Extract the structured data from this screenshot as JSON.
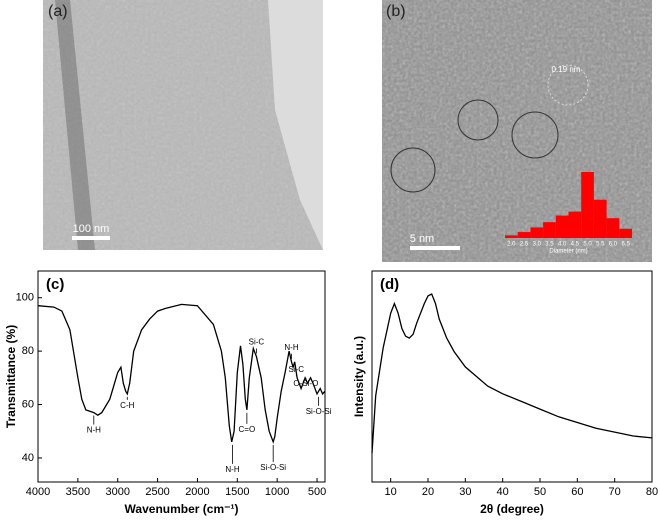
{
  "images": [
    {
      "label": "(a)",
      "scale_bar": "100 nm"
    },
    {
      "label": "(b)",
      "scale_bar": "5 nm",
      "annotation": "0.19 nm"
    }
  ],
  "chart_data": [
    {
      "type": "histogram",
      "xlabel": "Diameter (nm)",
      "color": "#ff0000",
      "bins": [
        1.75,
        2.25,
        2.75,
        3.25,
        3.75,
        4.25,
        4.75,
        5.25,
        5.75,
        6.25,
        6.75
      ],
      "values": [
        4,
        9,
        16,
        24,
        34,
        40,
        100,
        58,
        30,
        14
      ],
      "ylim": [
        0,
        100
      ],
      "xlim": [
        1.75,
        6.75
      ],
      "xticks": [
        {
          "value": 2,
          "label": "2.0"
        },
        2.5,
        {
          "value": 3,
          "label": "3.0"
        },
        3.5,
        {
          "value": 4,
          "label": "4.0"
        },
        4.5,
        {
          "value": 5,
          "label": "5.0"
        },
        5.5,
        {
          "value": 6,
          "label": "6.0"
        },
        6.5
      ]
    },
    {
      "type": "line",
      "label": "(c)",
      "xlabel": "Wavenumber (cm⁻¹)",
      "ylabel": "Transmittance (%)",
      "color": "#000000",
      "x": [
        4000,
        3800,
        3700,
        3600,
        3500,
        3450,
        3400,
        3300,
        3250,
        3200,
        3100,
        3000,
        2960,
        2930,
        2900,
        2880,
        2850,
        2800,
        2700,
        2600,
        2500,
        2400,
        2200,
        2000,
        1800,
        1700,
        1650,
        1600,
        1570,
        1540,
        1500,
        1460,
        1430,
        1400,
        1380,
        1350,
        1300,
        1260,
        1230,
        1200,
        1150,
        1100,
        1050,
        1030,
        1000,
        950,
        900,
        850,
        820,
        800,
        780,
        750,
        700,
        650,
        620,
        580,
        550,
        500,
        460,
        430,
        400
      ],
      "values": [
        97,
        96.5,
        95,
        88,
        70,
        62,
        58,
        57,
        56,
        57,
        62,
        72,
        74,
        68,
        65,
        64,
        68,
        80,
        88,
        92,
        95,
        96,
        97.5,
        97,
        90,
        80,
        70,
        52,
        46,
        50,
        72,
        82,
        75,
        62,
        58,
        70,
        81,
        78,
        74,
        70,
        58,
        50,
        46,
        48,
        55,
        65,
        72,
        80,
        76,
        74,
        76,
        70,
        66,
        70,
        68,
        70,
        68,
        64,
        66,
        64,
        65
      ],
      "xlim": [
        4000,
        400
      ],
      "ylim": [
        31,
        110
      ],
      "xticks": [
        4000,
        3500,
        3000,
        2500,
        2000,
        1500,
        1000,
        500
      ],
      "yticks": [
        40,
        60,
        80,
        100
      ],
      "annotations": [
        "N-H",
        "C-H",
        "N-H",
        "C=O",
        "Si-C",
        "Si-O-Si",
        "N-H",
        "Si-C",
        "O-Si-O",
        "Si-O-Si"
      ]
    },
    {
      "type": "line",
      "label": "(d)",
      "xlabel": "2θ (degree)",
      "ylabel": "Intensity (a.u.)",
      "color": "#000000",
      "x": [
        5,
        6,
        8,
        10,
        11,
        12,
        13,
        14,
        15,
        16,
        17,
        19,
        20,
        21,
        22,
        23,
        25,
        27,
        30,
        33,
        36,
        40,
        45,
        50,
        55,
        60,
        65,
        70,
        75,
        80
      ],
      "values": [
        15,
        45,
        70,
        88,
        93,
        88,
        80,
        76,
        75,
        77,
        83,
        93,
        97,
        98,
        93,
        85,
        75,
        68,
        60,
        55,
        50,
        46,
        42,
        38,
        34,
        31,
        28,
        26,
        24,
        23
      ],
      "xlim": [
        5,
        80
      ],
      "ylim": [
        0,
        110
      ],
      "xticks": [
        10,
        20,
        30,
        40,
        50,
        60,
        70,
        80
      ]
    }
  ]
}
